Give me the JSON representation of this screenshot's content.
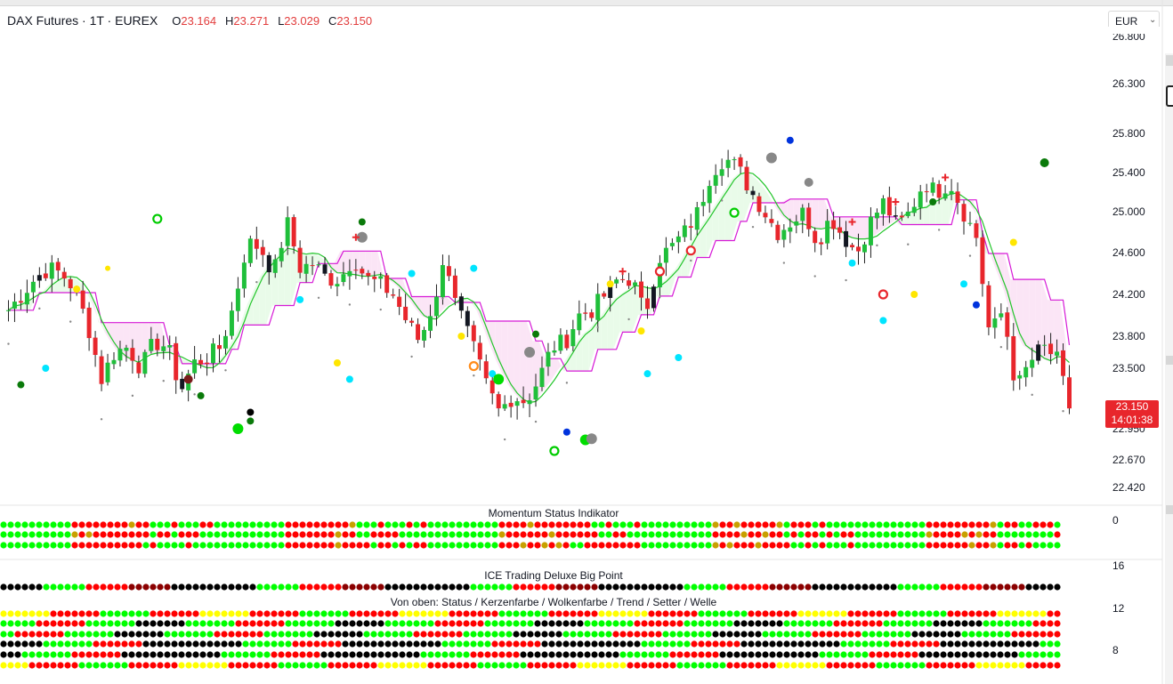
{
  "header": {
    "title": "DAX Futures · 1T · EUREX",
    "open_label": "O",
    "open_value": "23.164",
    "high_label": "H",
    "high_value": "23.271",
    "low_label": "L",
    "low_value": "23.029",
    "close_label": "C",
    "close_value": "23.150"
  },
  "currency": {
    "value": "EUR",
    "caret_icon": "chevron-down-icon"
  },
  "price_axis": {
    "labels": [
      "26.300",
      "25.800",
      "25.400",
      "25.000",
      "24.600",
      "24.200",
      "23.800",
      "23.500",
      "22.950",
      "22.670",
      "22.420"
    ],
    "top_clipped": "26.800"
  },
  "last_price": {
    "value": "23.150",
    "countdown": "14:01:38"
  },
  "panes": {
    "momentum_title": "Momentum Status Indikator",
    "momentum_axis": "0",
    "bigpoint_title": "ICE Trading Deluxe Big Point",
    "legend_title": "Von oben: Status / Kerzenfarbe / Wolkenfarbe / Trend / Setter / Welle",
    "lower_axis": [
      "16",
      "12",
      "8"
    ]
  },
  "colors": {
    "up": "#1fbf3a",
    "down": "#e8262c",
    "cloud_line_up": "#22c52a",
    "cloud_line_down": "#d619d6",
    "cloud_fill_up": "#e9fbe9",
    "cloud_fill_down": "#fbe5f6",
    "dot_green": "#00ff00",
    "dot_red": "#ff0000",
    "dot_dark": "#8b0000",
    "dot_black": "#000000",
    "dot_yellow": "#ffff00",
    "dot_darkgreen": "#0a7a0a"
  },
  "chart_data": {
    "type": "candlestick",
    "instrument": "DAX Futures",
    "timeframe": "1T",
    "exchange": "EUREX",
    "currency": "EUR",
    "ohlc_last": {
      "open": 23164,
      "high": 23271,
      "low": 23029,
      "close": 23150
    },
    "y_ticks": [
      26300,
      25800,
      25400,
      25000,
      24600,
      24200,
      23800,
      23500,
      22950,
      22670,
      22420
    ],
    "ylim": [
      22300,
      26850
    ],
    "close_path": [
      24050,
      24200,
      24350,
      24450,
      24400,
      24250,
      23900,
      23400,
      23650,
      23700,
      23500,
      23750,
      23700,
      23300,
      23550,
      23600,
      23700,
      24100,
      24700,
      24650,
      24400,
      24900,
      24450,
      24500,
      24350,
      24350,
      24550,
      24350,
      24300,
      24200,
      23950,
      23750,
      24100,
      24550,
      24050,
      23700,
      23350,
      23100,
      23250,
      23200,
      23400,
      23700,
      23750,
      24000,
      24050,
      24200,
      24350,
      24350,
      24000,
      24550,
      24650,
      24800,
      25000,
      25400,
      25550,
      25450,
      25200,
      25000,
      24800,
      24900,
      25000,
      24700,
      24950,
      24750,
      24600,
      24900,
      25100,
      24850,
      25000,
      25300,
      25200,
      25300,
      25000,
      24750,
      23800,
      24050,
      23300,
      23550,
      23700,
      23600,
      23150
    ]
  }
}
